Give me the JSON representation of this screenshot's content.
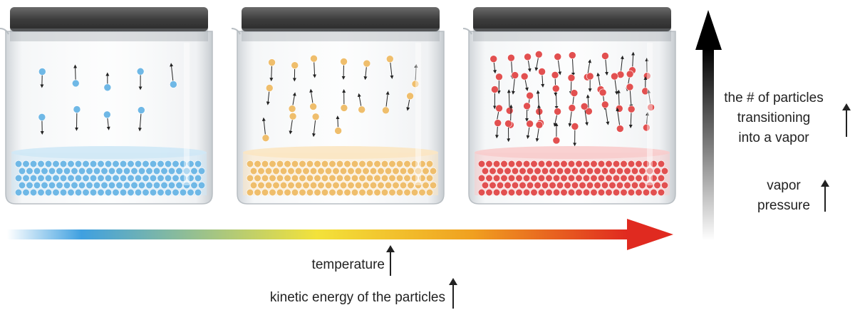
{
  "labels": {
    "temperature": "temperature",
    "kinetic_energy": "kinetic energy of the particles",
    "particles_line1": "the # of particles",
    "particles_line2": "transitioning",
    "particles_line3": "into a vapor",
    "vapor_line1": "vapor",
    "vapor_line2": "pressure"
  },
  "beakers": [
    {
      "name": "low-temperature-beaker",
      "particle_color": "#6fb8e6",
      "liquid_color": "#cfe8f6",
      "vapor_particles": 9
    },
    {
      "name": "medium-temperature-beaker",
      "particle_color": "#efbe6c",
      "liquid_color": "#fbe6c2",
      "vapor_particles": 18
    },
    {
      "name": "high-temperature-beaker",
      "particle_color": "#e25050",
      "liquid_color": "#f8cccc",
      "vapor_particles": 50
    }
  ],
  "colors": {
    "gradient_stops": [
      "#ffffff",
      "#3fa0e0",
      "#f3e23a",
      "#f0a020",
      "#e02a20"
    ],
    "lid": "#4a4a4a",
    "vertical_arrow": "#111111"
  },
  "icons": [
    "up-arrow-icon"
  ]
}
